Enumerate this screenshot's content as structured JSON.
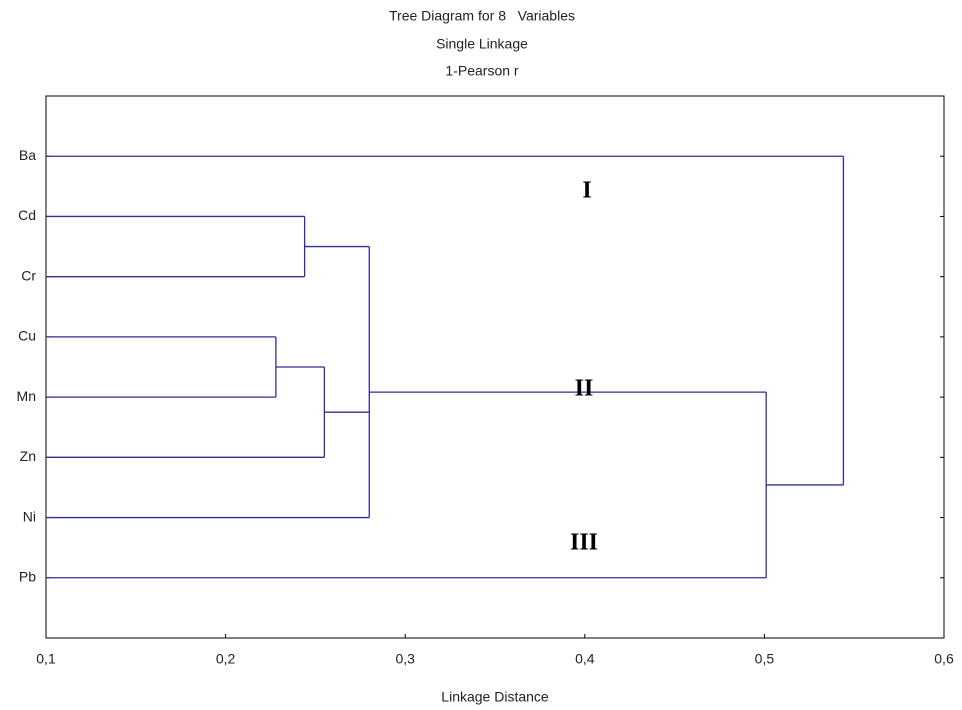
{
  "chart_data": {
    "type": "dendrogram",
    "title_lines": [
      "Tree Diagram for 8   Variables",
      "Single Linkage",
      "1-Pearson r"
    ],
    "x_label": "Linkage Distance",
    "categories": [
      "Ba",
      "Cd",
      "Cr",
      "Cu",
      "Mn",
      "Zn",
      "Ni",
      "Pb"
    ],
    "links": [
      {
        "children": [
          3,
          4
        ],
        "height": 0.228
      },
      {
        "children": [
          1,
          2
        ],
        "height": 0.244
      },
      {
        "children": [
          8,
          5
        ],
        "height": 0.255
      },
      {
        "children": [
          9,
          10,
          6
        ],
        "height": 0.28
      },
      {
        "children": [
          11,
          7
        ],
        "height": 0.501
      },
      {
        "children": [
          0,
          12
        ],
        "height": 0.544
      }
    ],
    "color": "#2e2e98",
    "xlim": [
      0.1,
      0.6
    ],
    "xticks": [
      {
        "value": 0.1,
        "label": "0,1"
      },
      {
        "value": 0.2,
        "label": "0,2"
      },
      {
        "value": 0.3,
        "label": "0,3"
      },
      {
        "value": 0.4,
        "label": "0,4"
      },
      {
        "value": 0.5,
        "label": "0,5"
      },
      {
        "value": 0.6,
        "label": "0,6"
      }
    ],
    "annotations": [
      "I",
      "II",
      "III"
    ]
  }
}
